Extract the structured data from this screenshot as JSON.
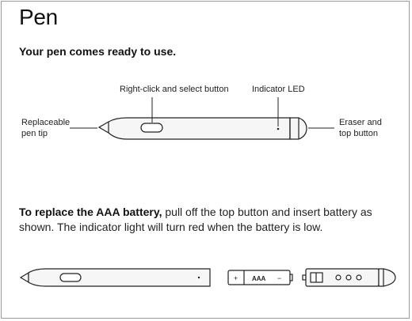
{
  "page": {
    "title": "Pen",
    "subtitle": "Your pen comes ready to use."
  },
  "diagram": {
    "labels": {
      "right_click": "Right-click and select button",
      "indicator_led": "Indicator LED",
      "pen_tip_line1": "Replaceable",
      "pen_tip_line2": "pen tip",
      "eraser_line1": "Eraser and",
      "eraser_line2": "top button"
    }
  },
  "instructions": {
    "bold_lead": "To replace the AAA battery,",
    "text": " pull off the top button and insert battery as shown. The indicator light will turn red when the battery is low."
  },
  "battery": {
    "plus": "+",
    "label": "AAA",
    "minus": "−"
  },
  "colors": {
    "outline": "#222222",
    "pen_fill": "#f6f6f6",
    "frame": "#9a9a9a"
  }
}
